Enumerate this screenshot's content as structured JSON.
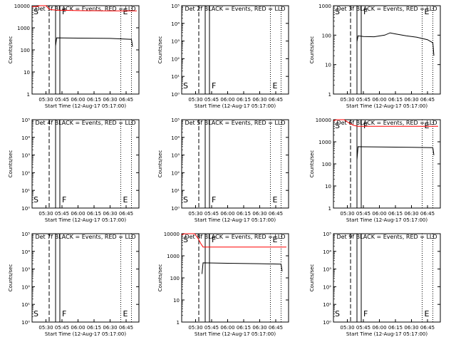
{
  "colors": {
    "events": "#000000",
    "lld": "#ff0000",
    "background": "#ffffff"
  },
  "chart_data": [
    {
      "type": "line",
      "title": "Det 1f BLACK = Events, RED = LLD",
      "xlabel": "Start Time (12-Aug-17 05:17:00)",
      "ylabel": "Counts/sec",
      "x_ticks": [
        "05:30",
        "05:45",
        "06:00",
        "06:15",
        "06:30",
        "06:45"
      ],
      "y_ticks": [
        "1",
        "10",
        "100",
        "1000",
        "10000"
      ],
      "ylim": [
        1,
        10000
      ],
      "y_scale": "log",
      "markers": [
        "S",
        "F",
        "E"
      ],
      "series": [
        {
          "color": "red",
          "x": [
            "05:17",
            "05:21",
            "05:24",
            "05:27",
            "05:30",
            "05:33",
            "05:36",
            "05:40",
            "06:00",
            "06:30",
            "06:55"
          ],
          "values": [
            9000,
            9000,
            11000,
            11000,
            10000,
            7000,
            6500,
            6300,
            6000,
            5800,
            5800
          ]
        },
        {
          "color": "black",
          "x": [
            "05:39",
            "05:40",
            "06:00",
            "06:30",
            "06:50",
            "06:51"
          ],
          "values": [
            150,
            350,
            340,
            330,
            300,
            140
          ]
        }
      ]
    },
    {
      "type": "line",
      "title": "Det 2f BLACK = Events, RED = LLD",
      "xlabel": "Start Time (12-Aug-17 05:17:00)",
      "ylabel": "Counts/sec",
      "x_ticks": [
        "05:30",
        "05:45",
        "06:00",
        "06:15",
        "06:30",
        "06:45"
      ],
      "y_ticks": [
        "10⁰",
        "10¹",
        "10²",
        "10³",
        "10⁴",
        "10⁵"
      ],
      "markers": [
        "S",
        "F",
        "E"
      ],
      "series": []
    },
    {
      "type": "line",
      "title": "Det 3f BLACK = Events, RED = LLD",
      "xlabel": "Start Time (12-Aug-17 05:17:00)",
      "ylabel": "Counts/sec",
      "x_ticks": [
        "05:30",
        "05:45",
        "06:00",
        "06:15",
        "06:30",
        "06:45"
      ],
      "y_ticks": [
        "1",
        "10",
        "100",
        "1000"
      ],
      "ylim": [
        1,
        1000
      ],
      "y_scale": "log",
      "markers": [
        "S",
        "F",
        "E"
      ],
      "series": [
        {
          "color": "black",
          "x": [
            "05:39",
            "05:40",
            "05:45",
            "05:55",
            "06:05",
            "06:10",
            "06:15",
            "06:25",
            "06:35",
            "06:45",
            "06:50",
            "06:51"
          ],
          "values": [
            60,
            95,
            90,
            88,
            100,
            120,
            110,
            95,
            85,
            70,
            55,
            20
          ]
        }
      ]
    },
    {
      "type": "line",
      "title": "Det 4f BLACK = Events, RED = LLD",
      "xlabel": "Start Time (12-Aug-17 05:17:00)",
      "ylabel": "Counts/sec",
      "x_ticks": [
        "05:30",
        "05:45",
        "06:00",
        "06:15",
        "06:30",
        "06:45"
      ],
      "y_ticks": [
        "10⁰",
        "10¹",
        "10²",
        "10³",
        "10⁴",
        "10⁵"
      ],
      "markers": [
        "S",
        "F",
        "E"
      ],
      "series": []
    },
    {
      "type": "line",
      "title": "Det 5f BLACK = Events, RED = LLD",
      "xlabel": "Start Time (12-Aug-17 05:17:00)",
      "ylabel": "Counts/sec",
      "x_ticks": [
        "05:30",
        "05:45",
        "06:00",
        "06:15",
        "06:30",
        "06:45"
      ],
      "y_ticks": [
        "10⁰",
        "10¹",
        "10²",
        "10³",
        "10⁴",
        "10⁵"
      ],
      "markers": [
        "S",
        "F",
        "E"
      ],
      "series": []
    },
    {
      "type": "line",
      "title": "Det 6f BLACK = Events, RED = LLD",
      "xlabel": "Start Time (12-Aug-17 05:17:00)",
      "ylabel": "Counts/sec",
      "x_ticks": [
        "05:30",
        "05:45",
        "06:00",
        "06:15",
        "06:30",
        "06:45"
      ],
      "y_ticks": [
        "1",
        "10",
        "100",
        "1000",
        "10000"
      ],
      "ylim": [
        1,
        10000
      ],
      "y_scale": "log",
      "markers": [
        "S",
        "F",
        "E"
      ],
      "series": [
        {
          "color": "red",
          "x": [
            "05:17",
            "05:20",
            "05:24",
            "05:27",
            "05:30",
            "05:33",
            "05:36",
            "05:40",
            "06:00",
            "06:30",
            "06:55"
          ],
          "values": [
            9000,
            10000,
            11000,
            10000,
            8000,
            6500,
            5500,
            5000,
            5000,
            5000,
            5000
          ]
        },
        {
          "color": "black",
          "x": [
            "05:39",
            "05:40",
            "06:00",
            "06:30",
            "06:50",
            "06:51"
          ],
          "values": [
            150,
            600,
            580,
            560,
            540,
            250
          ]
        }
      ]
    },
    {
      "type": "line",
      "title": "Det 7f BLACK = Events, RED = LLD",
      "xlabel": "Start Time (12-Aug-17 05:17:00)",
      "ylabel": "Counts/sec",
      "x_ticks": [
        "05:30",
        "05:45",
        "06:00",
        "06:15",
        "06:30",
        "06:45"
      ],
      "y_ticks": [
        "10⁰",
        "10¹",
        "10²",
        "10³",
        "10⁴",
        "10⁵"
      ],
      "markers": [
        "S",
        "F",
        "E"
      ],
      "series": []
    },
    {
      "type": "line",
      "title": "Det 8f BLACK = Events, RED = LLD",
      "xlabel": "Start Time (12-Aug-17 05:17:00)",
      "ylabel": "Counts/sec",
      "x_ticks": [
        "05:30",
        "05:45",
        "06:00",
        "06:15",
        "06:30",
        "06:45"
      ],
      "y_ticks": [
        "1",
        "10",
        "100",
        "1000",
        "10000"
      ],
      "ylim": [
        1,
        10000
      ],
      "y_scale": "log",
      "markers": [
        "S",
        "F",
        "E"
      ],
      "series": [
        {
          "color": "red",
          "x": [
            "05:17",
            "05:20",
            "05:23",
            "05:26",
            "05:29",
            "05:32",
            "05:35",
            "05:37",
            "06:00",
            "06:30",
            "06:55"
          ],
          "values": [
            9000,
            12000,
            16000,
            15000,
            11000,
            6500,
            3500,
            2500,
            2500,
            2500,
            2500
          ]
        },
        {
          "color": "black",
          "x": [
            "05:36",
            "05:37",
            "06:00",
            "06:30",
            "06:50",
            "06:51"
          ],
          "values": [
            150,
            480,
            460,
            440,
            420,
            200
          ]
        }
      ]
    },
    {
      "type": "line",
      "title": "Det 9f BLACK = Events, RED = LLD",
      "xlabel": "Start Time (12-Aug-17 05:17:00)",
      "ylabel": "Counts/sec",
      "x_ticks": [
        "05:30",
        "05:45",
        "06:00",
        "06:15",
        "06:30",
        "06:45"
      ],
      "y_ticks": [
        "10⁰",
        "10¹",
        "10²",
        "10³",
        "10⁴",
        "10⁵"
      ],
      "markers": [
        "S",
        "F",
        "E"
      ],
      "series": []
    }
  ]
}
